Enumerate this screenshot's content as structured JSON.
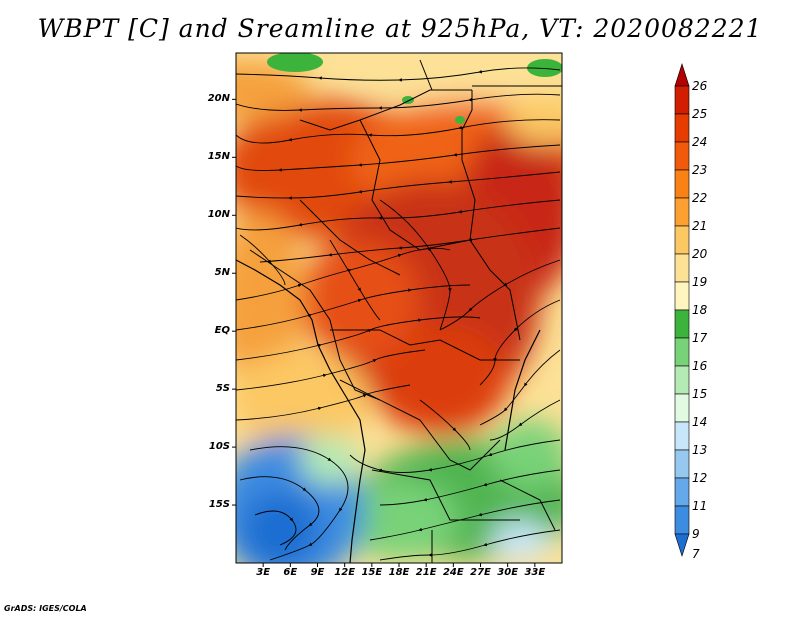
{
  "title": "WBPT [C] and Sreamline at 925hPa, VT: 2020082221",
  "credit": "GrADS: IGES/COLA",
  "map": {
    "lon_range": [
      0,
      36
    ],
    "lat_range": [
      -20,
      24
    ],
    "lat_ticks": [
      "20N",
      "15N",
      "10N",
      "5N",
      "EQ",
      "5S",
      "10S",
      "15S"
    ],
    "lat_tick_values": [
      20,
      15,
      10,
      5,
      0,
      -5,
      -10,
      -15
    ],
    "lon_ticks": [
      "3E",
      "6E",
      "9E",
      "12E",
      "15E",
      "18E",
      "21E",
      "24E",
      "27E",
      "30E",
      "33E"
    ],
    "lon_tick_values": [
      3,
      6,
      9,
      12,
      15,
      18,
      21,
      24,
      27,
      30,
      33
    ]
  },
  "colorbar": {
    "labels": [
      "26",
      "25",
      "24",
      "23",
      "22",
      "21",
      "20",
      "19",
      "18",
      "17",
      "16",
      "15",
      "14",
      "13",
      "12",
      "11",
      "9",
      "7"
    ],
    "colors": [
      "#b40000",
      "#d21e00",
      "#e63c00",
      "#f05a0a",
      "#fa8214",
      "#fca032",
      "#fcc864",
      "#fce196",
      "#fff5be",
      "#3cb43c",
      "#78d278",
      "#b4ebb4",
      "#e1fae1",
      "#c8e6fa",
      "#96c8f0",
      "#64aaeb",
      "#3c8ce1",
      "#1e6ed2"
    ]
  }
}
